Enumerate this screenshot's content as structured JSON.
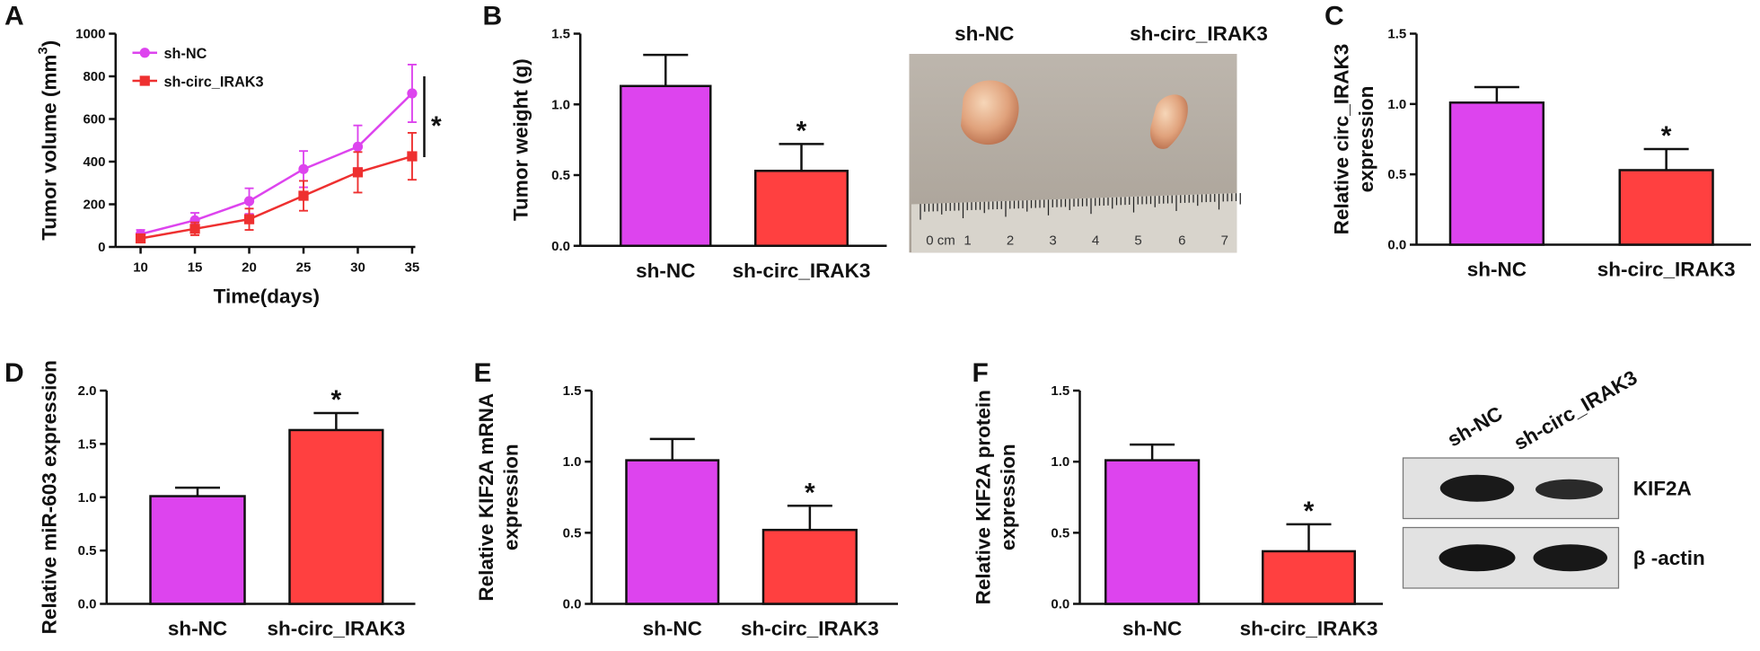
{
  "panels": [
    "A",
    "B",
    "C",
    "D",
    "E",
    "F"
  ],
  "photo": {
    "labels": [
      "sh-NC",
      "sh-circ_IRAK3"
    ],
    "ruler": [
      "0 cm",
      "1",
      "2",
      "3",
      "4",
      "5",
      "6",
      "7"
    ]
  },
  "blot": {
    "lanes": [
      "sh-NC",
      "sh-circ_IRAK3"
    ],
    "bands": [
      "KIF2A",
      "β -actin"
    ]
  },
  "chart_data": [
    {
      "type": "line",
      "ylabel": [
        "Tumor volume (mm",
        "3",
        ")"
      ],
      "xlabel": "Time(days)",
      "annotation": "*",
      "x": [
        10,
        15,
        20,
        25,
        30,
        35
      ],
      "xlim": [
        7.7,
        35.5
      ],
      "xticks": [
        10,
        15,
        20,
        25,
        30,
        35
      ],
      "ylim": [
        0,
        1000
      ],
      "yticks": [
        0,
        200,
        400,
        600,
        800,
        1000
      ],
      "series": [
        {
          "name": "sh-NC",
          "color": "#dd44ee",
          "values": [
            60,
            125,
            215,
            365,
            470,
            720
          ],
          "errors": [
            20,
            35,
            60,
            85,
            100,
            135
          ]
        },
        {
          "name": "sh-circ_IRAK3",
          "color": "#ee3030",
          "values": [
            40,
            85,
            130,
            240,
            350,
            425
          ],
          "errors": [
            15,
            30,
            50,
            70,
            95,
            110
          ]
        }
      ]
    },
    {
      "type": "bar",
      "ylabel": [
        "Tumor weight (g)"
      ],
      "annotation": "*",
      "categories": [
        "sh-NC",
        "sh-circ_IRAK3"
      ],
      "values": [
        1.13,
        0.53
      ],
      "errors": [
        0.22,
        0.19
      ],
      "colors": [
        "#dd44ee",
        "#ff4040"
      ],
      "ylim": [
        0,
        1.5
      ],
      "yticks": [
        {
          "value": 0,
          "label": "0.0"
        },
        {
          "value": 0.5,
          "label": "0.5"
        },
        {
          "value": 1,
          "label": "1.0"
        },
        {
          "value": 1.5,
          "label": "1.5"
        }
      ]
    },
    {
      "type": "bar",
      "ylabel": [
        "Relative circ_IRAK3",
        "expression"
      ],
      "annotation": "*",
      "categories": [
        "sh-NC",
        "sh-circ_IRAK3"
      ],
      "values": [
        1.01,
        0.53
      ],
      "errors": [
        0.11,
        0.15
      ],
      "colors": [
        "#dd44ee",
        "#ff4040"
      ],
      "ylim": [
        0,
        1.5
      ],
      "yticks": [
        {
          "value": 0,
          "label": "0.0"
        },
        {
          "value": 0.5,
          "label": "0.5"
        },
        {
          "value": 1,
          "label": "1.0"
        },
        {
          "value": 1.5,
          "label": "1.5"
        }
      ]
    },
    {
      "type": "bar",
      "ylabel": [
        "Relative miR-603 expression"
      ],
      "annotation": "*",
      "categories": [
        "sh-NC",
        "sh-circ_IRAK3"
      ],
      "values": [
        1.01,
        1.63
      ],
      "errors": [
        0.08,
        0.16
      ],
      "colors": [
        "#dd44ee",
        "#ff4040"
      ],
      "ylim": [
        0,
        2
      ],
      "yticks": [
        {
          "value": 0,
          "label": "0.0"
        },
        {
          "value": 0.5,
          "label": "0.5"
        },
        {
          "value": 1,
          "label": "1.0"
        },
        {
          "value": 1.5,
          "label": "1.5"
        },
        {
          "value": 2,
          "label": "2.0"
        }
      ]
    },
    {
      "type": "bar",
      "ylabel": [
        "Relative KIF2A mRNA",
        "expression"
      ],
      "annotation": "*",
      "categories": [
        "sh-NC",
        "sh-circ_IRAK3"
      ],
      "values": [
        1.01,
        0.52
      ],
      "errors": [
        0.15,
        0.17
      ],
      "colors": [
        "#dd44ee",
        "#ff4040"
      ],
      "ylim": [
        0,
        1.5
      ],
      "yticks": [
        {
          "value": 0,
          "label": "0.0"
        },
        {
          "value": 0.5,
          "label": "0.5"
        },
        {
          "value": 1,
          "label": "1.0"
        },
        {
          "value": 1.5,
          "label": "1.5"
        }
      ]
    },
    {
      "type": "bar",
      "ylabel": [
        "Relative KIF2A protein",
        "expression"
      ],
      "annotation": "*",
      "categories": [
        "sh-NC",
        "sh-circ_IRAK3"
      ],
      "values": [
        1.01,
        0.37
      ],
      "errors": [
        0.11,
        0.19
      ],
      "colors": [
        "#dd44ee",
        "#ff4040"
      ],
      "ylim": [
        0,
        1.5
      ],
      "yticks": [
        {
          "value": 0,
          "label": "0.0"
        },
        {
          "value": 0.5,
          "label": "0.5"
        },
        {
          "value": 1,
          "label": "1.0"
        },
        {
          "value": 1.5,
          "label": "1.5"
        }
      ]
    }
  ]
}
